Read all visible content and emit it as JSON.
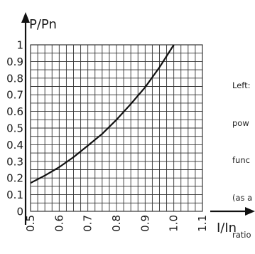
{
  "chart_data": {
    "type": "line",
    "xlabel": "I/In",
    "ylabel": "P/Pn",
    "xlim": [
      0.5,
      1.1
    ],
    "ylim": [
      0,
      1
    ],
    "x_ticks": [
      "0.5",
      "0.6",
      "0.7",
      "0.8",
      "0.9",
      "1.0",
      "1.1"
    ],
    "y_ticks": [
      "0",
      "0.1",
      "0.2",
      "0.3",
      "0.4",
      "0.5",
      "0.6",
      "0.7",
      "0.8",
      "0.9",
      "1"
    ],
    "grid": true,
    "series": [
      {
        "x": [
          0.5,
          0.55,
          0.6,
          0.65,
          0.7,
          0.75,
          0.8,
          0.85,
          0.9,
          0.95,
          1.0
        ],
        "y": [
          0.17,
          0.215,
          0.265,
          0.325,
          0.395,
          0.465,
          0.55,
          0.645,
          0.745,
          0.865,
          1.0
        ]
      }
    ]
  },
  "caption": [
    "Left:",
    "pow",
    "func",
    "(as a",
    "ratio"
  ]
}
